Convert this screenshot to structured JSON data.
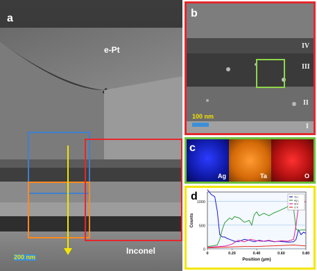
{
  "panel_a": {
    "label": "a",
    "layer_top": "e-Pt",
    "layer_bottom": "Inconel",
    "scale": "200 nm",
    "box_colors": {
      "blue": "#3f7fd0",
      "orange": "#ff8a1f",
      "red": "#e4282c",
      "arrow": "#f2e600"
    }
  },
  "panel_b": {
    "label": "b",
    "frame_color": "#e4282c",
    "regions": [
      "IV",
      "III",
      "II",
      "I"
    ],
    "scale": "100 nm",
    "roi_color": "#8fd84a"
  },
  "panel_c": {
    "label": "c",
    "frame_color": "#6abf3a",
    "maps": [
      {
        "element": "Ag",
        "color": "#1c2fe0"
      },
      {
        "element": "Ta",
        "color": "#ff8a10"
      },
      {
        "element": "O",
        "color": "#e01818"
      }
    ]
  },
  "panel_d": {
    "label": "d",
    "frame_color": "#f2e600"
  },
  "chart_data": {
    "type": "line",
    "xlabel": "Position (µm)",
    "ylabel": "Counts",
    "xlim": [
      0,
      0.8
    ],
    "ylim": [
      0,
      1200
    ],
    "xticks": [
      "0",
      "0.20",
      "0.40",
      "0.60",
      "0.80"
    ],
    "yticks": [
      "0",
      "500",
      "1000"
    ],
    "legend_placement": "top-right",
    "series": [
      {
        "name": "Ta L",
        "color": "#1a1acc",
        "x": [
          0,
          0.03,
          0.06,
          0.08,
          0.1,
          0.12,
          0.14,
          0.16,
          0.18,
          0.2,
          0.22,
          0.25,
          0.3,
          0.34,
          0.38,
          0.42,
          0.46,
          0.5,
          0.54,
          0.58,
          0.62,
          0.66,
          0.7,
          0.72,
          0.74,
          0.76,
          0.78,
          0.8
        ],
        "y": [
          1250,
          1150,
          1100,
          800,
          300,
          250,
          250,
          220,
          200,
          180,
          160,
          150,
          200,
          180,
          150,
          180,
          160,
          170,
          150,
          160,
          150,
          140,
          150,
          200,
          400,
          300,
          350,
          330
        ]
      },
      {
        "name": "Ag L",
        "color": "#2e9e3a",
        "x": [
          0,
          0.04,
          0.08,
          0.1,
          0.12,
          0.14,
          0.16,
          0.18,
          0.2,
          0.22,
          0.26,
          0.3,
          0.34,
          0.36,
          0.38,
          0.4,
          0.42,
          0.46,
          0.5,
          0.54,
          0.58,
          0.62,
          0.66,
          0.7,
          0.72,
          0.74,
          0.76,
          0.8
        ],
        "y": [
          50,
          60,
          80,
          200,
          400,
          550,
          600,
          650,
          620,
          680,
          650,
          560,
          600,
          500,
          720,
          780,
          700,
          750,
          700,
          760,
          800,
          850,
          900,
          850,
          420,
          380,
          400,
          400
        ]
      },
      {
        "name": "Ni K",
        "color": "#e0209a",
        "x": [
          0,
          0.05,
          0.1,
          0.15,
          0.2,
          0.25,
          0.3,
          0.35,
          0.4,
          0.45,
          0.5,
          0.55,
          0.6,
          0.65,
          0.7,
          0.72,
          0.74,
          0.76,
          0.78,
          0.8
        ],
        "y": [
          30,
          40,
          50,
          60,
          100,
          180,
          150,
          200,
          170,
          160,
          180,
          150,
          170,
          160,
          200,
          500,
          900,
          950,
          980,
          1000
        ]
      },
      {
        "name": "O K",
        "color": "#e03020",
        "x": [
          0,
          0.1,
          0.2,
          0.3,
          0.4,
          0.5,
          0.6,
          0.7,
          0.8
        ],
        "y": [
          20,
          30,
          40,
          50,
          50,
          60,
          70,
          80,
          60
        ]
      }
    ]
  }
}
